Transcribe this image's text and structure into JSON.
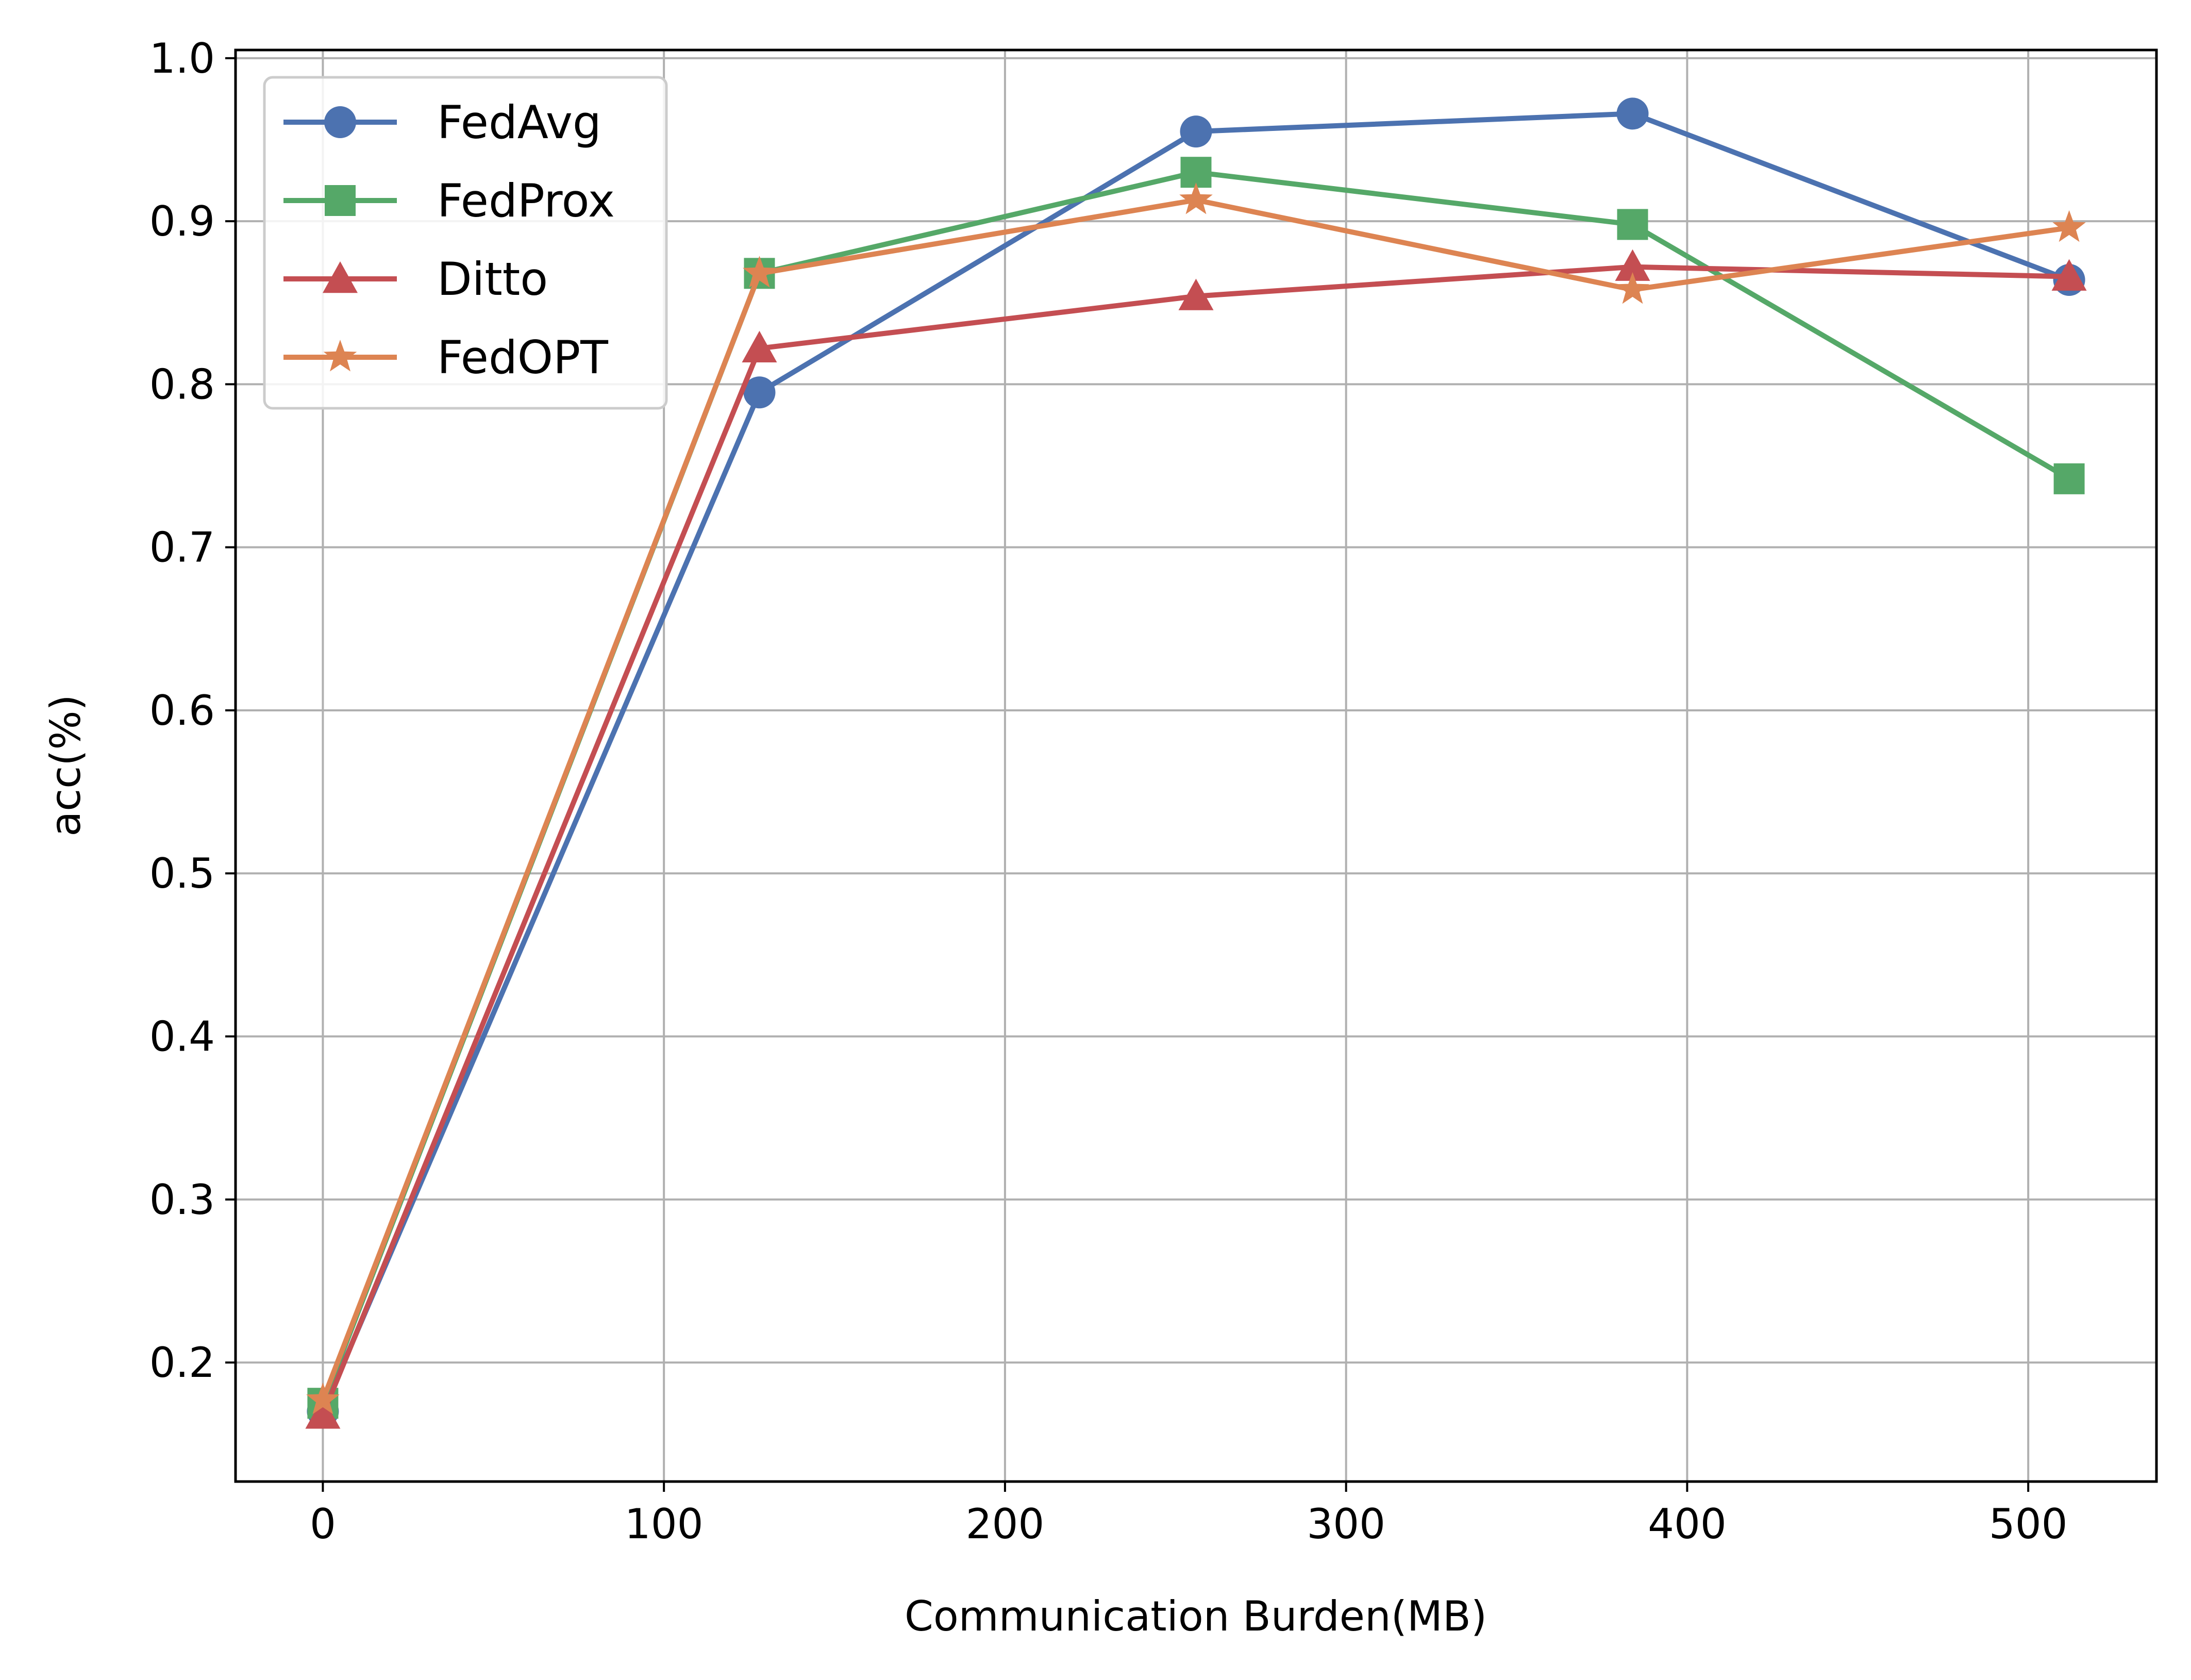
{
  "chart_data": {
    "type": "line",
    "title": "",
    "xlabel": "Communication Burden(MB)",
    "ylabel": "acc(%)",
    "xlim": [
      -25.6,
      537.6
    ],
    "ylim": [
      0.127,
      1.005
    ],
    "x_ticks": [
      0,
      100,
      200,
      300,
      400,
      500
    ],
    "y_ticks": [
      0.2,
      0.3,
      0.4,
      0.5,
      0.6,
      0.7,
      0.8,
      0.9,
      1.0
    ],
    "x_tick_labels": [
      "0",
      "100",
      "200",
      "300",
      "400",
      "500"
    ],
    "y_tick_labels": [
      "0.2",
      "0.3",
      "0.4",
      "0.5",
      "0.6",
      "0.7",
      "0.8",
      "0.9",
      "1.0"
    ],
    "grid": true,
    "legend_position": "top-left",
    "x": [
      0,
      128,
      256,
      384,
      512
    ],
    "series": [
      {
        "name": "FedAvg",
        "marker": "circle",
        "color": "#4c72b0",
        "values": [
          0.17,
          0.795,
          0.955,
          0.966,
          0.864
        ]
      },
      {
        "name": "FedProx",
        "marker": "square",
        "color": "#55a868",
        "values": [
          0.175,
          0.868,
          0.93,
          0.898,
          0.742
        ]
      },
      {
        "name": "Ditto",
        "marker": "triangle",
        "color": "#c44e52",
        "values": [
          0.168,
          0.822,
          0.854,
          0.872,
          0.866
        ]
      },
      {
        "name": "FedOPT",
        "marker": "star",
        "color": "#dd8452",
        "values": [
          0.177,
          0.868,
          0.913,
          0.858,
          0.896
        ]
      }
    ]
  }
}
